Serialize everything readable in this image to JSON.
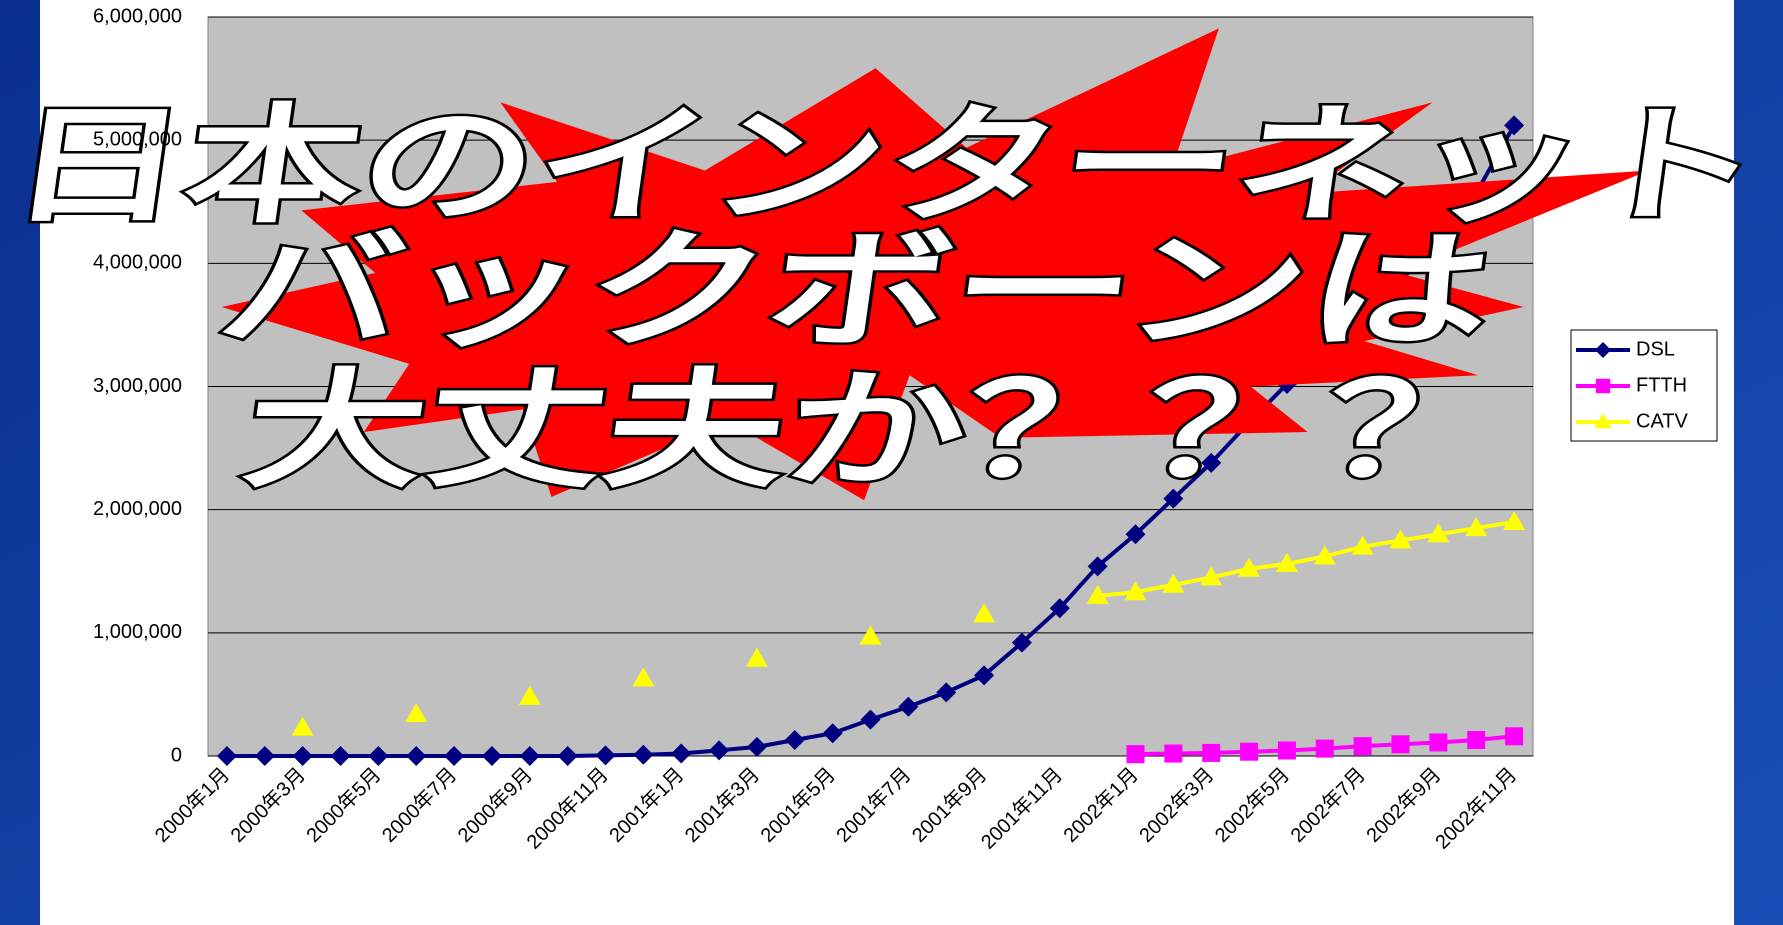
{
  "chart_data": {
    "type": "line",
    "annotations": [
      "日本のインターネット",
      "バックボーンは",
      "大丈夫か？？？"
    ],
    "categories": [
      "2000年1月",
      null,
      "2000年3月",
      null,
      "2000年5月",
      null,
      "2000年7月",
      null,
      "2000年9月",
      null,
      "2000年11月",
      null,
      "2001年1月",
      null,
      "2001年3月",
      null,
      "2001年5月",
      null,
      "2001年7月",
      null,
      "2001年9月",
      null,
      "2001年11月",
      null,
      "2002年1月",
      null,
      "2002年3月",
      null,
      "2002年5月",
      null,
      "2002年7月",
      null,
      "2002年9月",
      null,
      "2002年11月"
    ],
    "series": [
      {
        "name": "DSL",
        "color": "#000080",
        "marker": "diamond",
        "values": [
          0,
          0,
          0,
          0,
          0,
          0,
          0,
          0,
          0,
          0,
          5000,
          10000,
          20000,
          46000,
          74000,
          130000,
          185000,
          295000,
          400000,
          517000,
          655000,
          920000,
          1200000,
          1540000,
          1800000,
          2090000,
          2380000,
          2710000,
          3020000,
          3300000,
          3600000,
          3920000,
          4230000,
          4570000,
          5120000
        ]
      },
      {
        "name": "FTTH",
        "color": "#ff00ff",
        "marker": "square",
        "values": [
          null,
          null,
          null,
          null,
          null,
          null,
          null,
          null,
          null,
          null,
          null,
          null,
          null,
          null,
          null,
          null,
          null,
          null,
          null,
          null,
          null,
          null,
          null,
          null,
          15000,
          20000,
          25000,
          35000,
          45000,
          60000,
          80000,
          95000,
          110000,
          130000,
          160000
        ]
      },
      {
        "name": "CATV",
        "color": "#ffff00",
        "marker": "triangle",
        "values": [
          null,
          null,
          230000,
          null,
          null,
          340000,
          null,
          null,
          480000,
          null,
          null,
          630000,
          null,
          null,
          790000,
          null,
          null,
          970000,
          null,
          null,
          1150000,
          null,
          null,
          1300000,
          1330000,
          1390000,
          1450000,
          1520000,
          1560000,
          1620000,
          1700000,
          1750000,
          1800000,
          1850000,
          1900000
        ]
      }
    ],
    "ylim": [
      0,
      6000000
    ],
    "yticks": [
      0,
      {
        "value": 1000000,
        "label": "1,000,000"
      },
      {
        "value": 2000000,
        "label": "2,000,000"
      },
      {
        "value": 3000000,
        "label": "3,000,000"
      },
      {
        "value": 4000000,
        "label": "4,000,000"
      },
      {
        "value": 5000000,
        "label": "5,000,000"
      },
      {
        "value": 6000000,
        "label": "6,000,000"
      }
    ],
    "grid": true
  }
}
